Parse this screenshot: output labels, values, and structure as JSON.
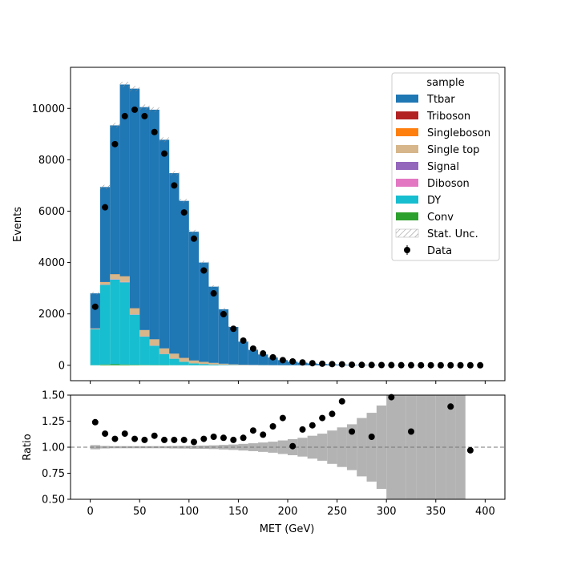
{
  "chart_data": [
    {
      "type": "bar",
      "stacked": true,
      "xlabel": "",
      "ylabel": "Events",
      "xlim": [
        -20,
        420
      ],
      "ylim": [
        -600,
        11600
      ],
      "bin_width": 10,
      "x": [
        5,
        15,
        25,
        35,
        45,
        55,
        65,
        75,
        85,
        95,
        105,
        115,
        125,
        135,
        145,
        155,
        165,
        175,
        185,
        195,
        205,
        215,
        225,
        235,
        245,
        255,
        265,
        275,
        285,
        295,
        305,
        315,
        325,
        335,
        345,
        355,
        365,
        375,
        385,
        395
      ],
      "x_ticks": [
        "0",
        "50",
        "100",
        "150",
        "200",
        "250",
        "300",
        "350",
        "400"
      ],
      "y_ticks": [
        "0",
        "2000",
        "4000",
        "6000",
        "8000",
        "10000"
      ],
      "legend_title": "sample",
      "legend_position": "top-right",
      "series": [
        {
          "name": "Conv",
          "color": "#2ca02c",
          "values": [
            5,
            30,
            40,
            30,
            20,
            15,
            10,
            8,
            5,
            3,
            2,
            1,
            1,
            0,
            0,
            0,
            0,
            0,
            0,
            0,
            0,
            0,
            0,
            0,
            0,
            0,
            0,
            0,
            0,
            0,
            0,
            0,
            0,
            0,
            0,
            0,
            0,
            0,
            0,
            0
          ]
        },
        {
          "name": "DY",
          "color": "#17becf",
          "values": [
            1400,
            3100,
            3300,
            3200,
            1950,
            1100,
            750,
            430,
            250,
            130,
            70,
            50,
            30,
            20,
            10,
            6,
            4,
            3,
            2,
            1,
            1,
            0,
            0,
            0,
            0,
            0,
            0,
            0,
            0,
            0,
            0,
            0,
            0,
            0,
            0,
            0,
            0,
            0,
            0,
            0
          ]
        },
        {
          "name": "Diboson",
          "color": "#e377c2",
          "values": [
            5,
            10,
            15,
            15,
            12,
            10,
            8,
            6,
            5,
            4,
            3,
            2,
            2,
            1,
            1,
            1,
            1,
            0,
            0,
            0,
            0,
            0,
            0,
            0,
            0,
            0,
            0,
            0,
            0,
            0,
            0,
            0,
            0,
            0,
            0,
            0,
            0,
            0,
            0,
            0
          ]
        },
        {
          "name": "Signal",
          "color": "#9467bd",
          "values": [
            0,
            0,
            0,
            0,
            0,
            0,
            0,
            0,
            0,
            0,
            0,
            0,
            0,
            0,
            0,
            0,
            0,
            0,
            0,
            0,
            0,
            0,
            0,
            0,
            0,
            0,
            0,
            0,
            0,
            0,
            0,
            0,
            0,
            0,
            0,
            0,
            0,
            0,
            0,
            0
          ]
        },
        {
          "name": "Single top",
          "color": "#d6b68a",
          "values": [
            20,
            90,
            180,
            210,
            230,
            240,
            240,
            210,
            190,
            150,
            110,
            80,
            60,
            40,
            25,
            15,
            10,
            6,
            4,
            3,
            2,
            1,
            1,
            0,
            0,
            0,
            0,
            0,
            0,
            0,
            0,
            0,
            0,
            0,
            0,
            0,
            0,
            0,
            0,
            0
          ]
        },
        {
          "name": "Singleboson",
          "color": "#ff7f0e",
          "values": [
            5,
            10,
            10,
            10,
            8,
            6,
            4,
            3,
            2,
            1,
            1,
            0,
            0,
            0,
            0,
            0,
            0,
            0,
            0,
            0,
            0,
            0,
            0,
            0,
            0,
            0,
            0,
            0,
            0,
            0,
            0,
            0,
            0,
            0,
            0,
            0,
            0,
            0,
            0,
            0
          ]
        },
        {
          "name": "Triboson",
          "color": "#b22222",
          "values": [
            0,
            0,
            0,
            0,
            0,
            0,
            0,
            0,
            0,
            0,
            0,
            0,
            0,
            0,
            0,
            0,
            0,
            0,
            0,
            0,
            0,
            0,
            0,
            0,
            0,
            0,
            0,
            0,
            0,
            0,
            0,
            0,
            0,
            0,
            0,
            0,
            0,
            0,
            0,
            0
          ]
        },
        {
          "name": "Ttbar",
          "color": "#1f77b4",
          "values": [
            1365,
            3700,
            5795,
            7465,
            8550,
            8679,
            8938,
            8123,
            7028,
            6112,
            5014,
            3867,
            2968,
            2119,
            1454,
            898,
            585,
            411,
            294,
            196,
            137,
            98,
            69,
            50,
            36,
            26,
            19,
            14,
            10,
            7,
            5,
            4,
            3,
            2,
            2,
            1,
            1,
            1,
            1,
            0
          ]
        }
      ],
      "uncertainty": {
        "name": "Stat. Unc.",
        "style": "hatched"
      },
      "data": {
        "name": "Data",
        "values": [
          2280,
          6150,
          8610,
          9700,
          9950,
          9700,
          9080,
          8240,
          7000,
          5950,
          4930,
          3690,
          2800,
          1990,
          1420,
          960,
          650,
          460,
          310,
          200,
          150,
          110,
          80,
          60,
          45,
          37,
          22,
          15,
          11,
          8,
          7,
          4,
          3,
          2,
          2,
          1,
          1,
          1,
          1,
          0
        ]
      }
    },
    {
      "type": "scatter",
      "xlabel": "MET (GeV)",
      "ylabel": "Ratio",
      "xlim": [
        -20,
        420
      ],
      "ylim": [
        0.5,
        1.5
      ],
      "x_ticks": [
        "0",
        "50",
        "100",
        "150",
        "200",
        "250",
        "300",
        "350",
        "400"
      ],
      "y_ticks": [
        "0.50",
        "0.75",
        "1.00",
        "1.25",
        "1.50"
      ],
      "reference_line": 1.0,
      "ratio_x": [
        5,
        15,
        25,
        35,
        45,
        55,
        65,
        75,
        85,
        95,
        105,
        115,
        125,
        135,
        145,
        155,
        165,
        175,
        185,
        195,
        205,
        215,
        225,
        235,
        245,
        255,
        265,
        285,
        305,
        325,
        365,
        385
      ],
      "ratio_values": [
        1.24,
        1.13,
        1.08,
        1.13,
        1.08,
        1.07,
        1.11,
        1.07,
        1.07,
        1.07,
        1.05,
        1.08,
        1.1,
        1.09,
        1.07,
        1.09,
        1.16,
        1.12,
        1.2,
        1.28,
        1.01,
        1.17,
        1.21,
        1.28,
        1.32,
        1.44,
        1.15,
        1.1,
        1.48,
        1.15,
        1.39,
        0.97
      ],
      "uncertainty_halfwidth": [
        0.02,
        0.012,
        0.01,
        0.01,
        0.01,
        0.01,
        0.01,
        0.01,
        0.012,
        0.013,
        0.015,
        0.016,
        0.018,
        0.022,
        0.026,
        0.032,
        0.038,
        0.045,
        0.053,
        0.065,
        0.077,
        0.09,
        0.11,
        0.13,
        0.16,
        0.19,
        0.22,
        0.28,
        0.33,
        0.4,
        0.5,
        0.5,
        0.5,
        0.5,
        0.5,
        0.5,
        0.5,
        0.5
      ]
    }
  ]
}
